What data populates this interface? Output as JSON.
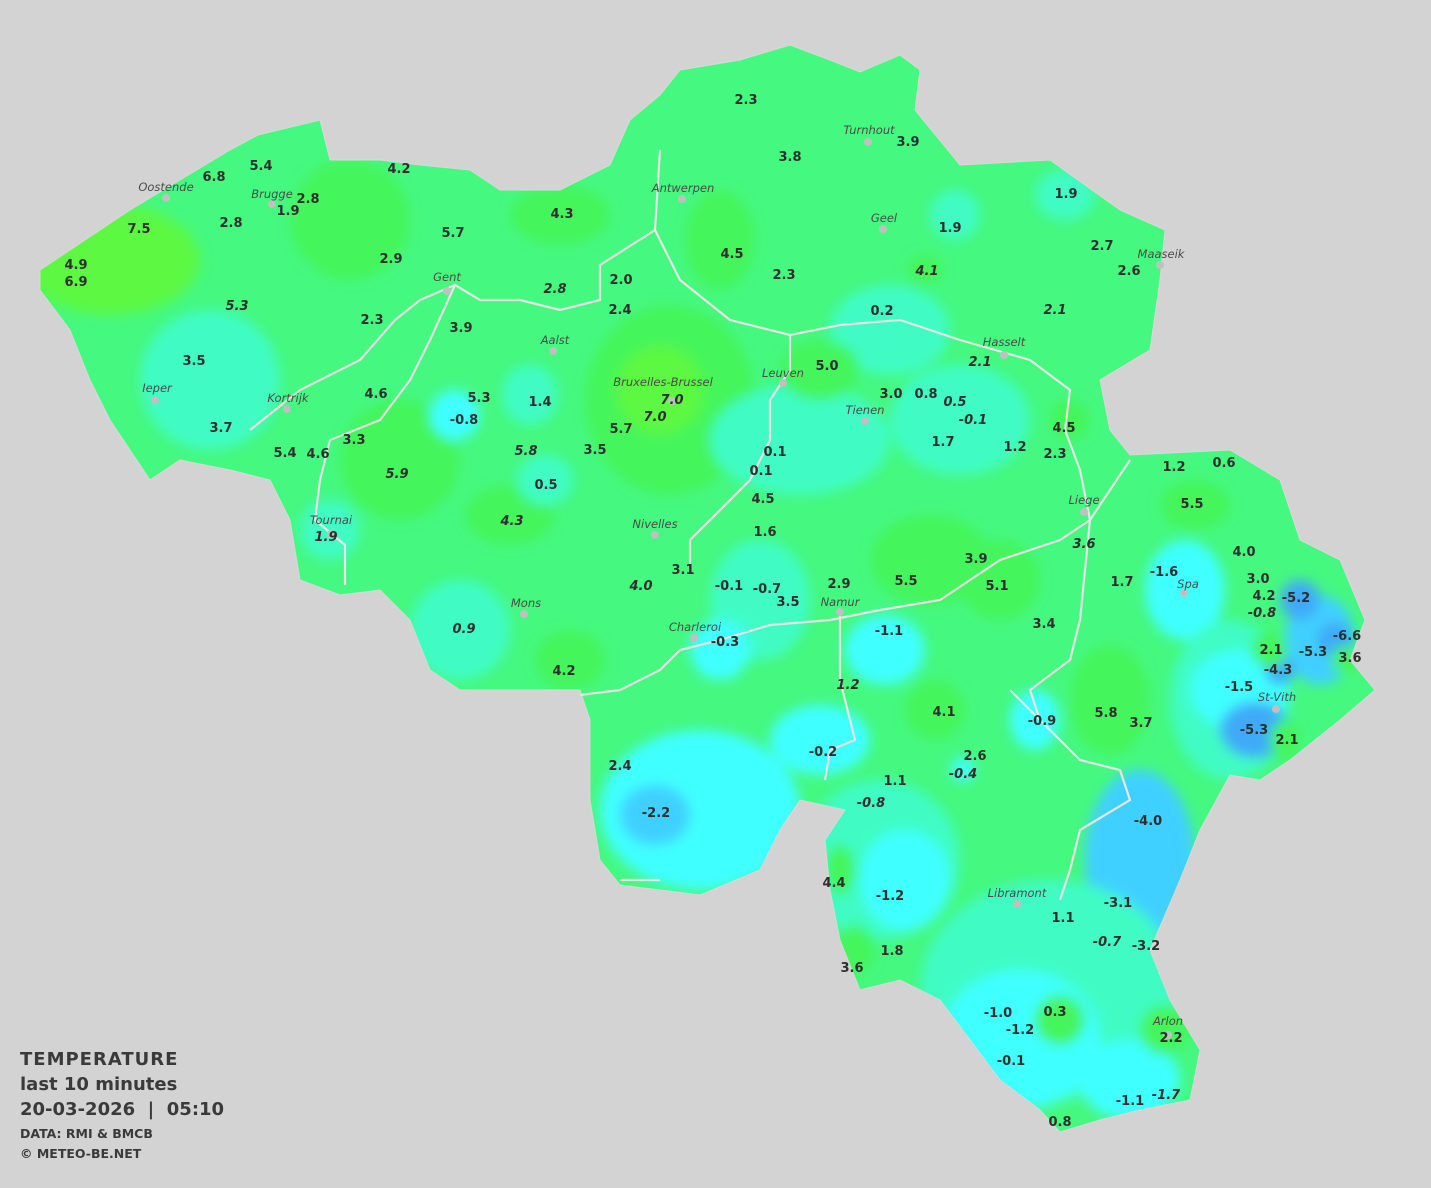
{
  "legend": {
    "title": "TEMPERATURE",
    "period": "last 10 minutes",
    "datetime": "20-03-2026  |  05:10",
    "source": "DATA: RMI & BMCB",
    "copyright": "© METEO-BE.NET"
  },
  "colors": {
    "background": "#d3d3d3",
    "base_green": "#45f880",
    "green": "#44f55c",
    "lime": "#5cf842",
    "aqua": "#40fcc4",
    "cyan": "#40ffff",
    "light_blue": "#40d0ff",
    "blue": "#40aaf8",
    "borders": "#e0e0e0"
  },
  "cities": [
    "Oostende",
    "Brugge",
    "Gent",
    "Antwerpen",
    "Turnhout",
    "Geel",
    "Maaseik",
    "Hasselt",
    "Aalst",
    "Ieper",
    "Kortrijk",
    "Bruxelles-Brussel",
    "Leuven",
    "Tienen",
    "Liege",
    "Tournai",
    "Nivelles",
    "Spa",
    "Mons",
    "Charleroi",
    "Namur",
    "St-Vith",
    "Libramont",
    "Arlon"
  ],
  "values": [
    {
      "t": "2.3"
    },
    {
      "t": "3.8"
    },
    {
      "t": "3.9"
    },
    {
      "t": "1.9"
    },
    {
      "t": "5.4"
    },
    {
      "t": "6.8"
    },
    {
      "t": "4.2"
    },
    {
      "t": "2.8"
    },
    {
      "t": "1.9"
    },
    {
      "t": "7.5"
    },
    {
      "t": "2.8"
    },
    {
      "t": "4.9"
    },
    {
      "t": "6.9"
    },
    {
      "t": "5.7"
    },
    {
      "t": "4.3"
    },
    {
      "t": "4.5"
    },
    {
      "t": "1.9"
    },
    {
      "t": "2.7"
    },
    {
      "t": "2.6"
    },
    {
      "t": "2.9"
    },
    {
      "t": "2.0"
    },
    {
      "t": "2.3"
    },
    {
      "t": "4.1",
      "i": true
    },
    {
      "t": "5.3",
      "i": true
    },
    {
      "t": "2.8",
      "i": true
    },
    {
      "t": "2.4"
    },
    {
      "t": "0.2"
    },
    {
      "t": "2.1",
      "i": true
    },
    {
      "t": "2.3"
    },
    {
      "t": "3.9"
    },
    {
      "t": "2.1",
      "i": true
    },
    {
      "t": "3.5"
    },
    {
      "t": "5.0"
    },
    {
      "t": "4.6"
    },
    {
      "t": "5.3"
    },
    {
      "t": "1.4"
    },
    {
      "t": "7.0",
      "i": true
    },
    {
      "t": "7.0",
      "i": true
    },
    {
      "t": "3.0"
    },
    {
      "t": "0.8"
    },
    {
      "t": "0.5",
      "i": true
    },
    {
      "t": "-0.1",
      "i": true
    },
    {
      "t": "-0.8"
    },
    {
      "t": "3.7"
    },
    {
      "t": "5.7"
    },
    {
      "t": "4.5"
    },
    {
      "t": "3.3"
    },
    {
      "t": "5.4"
    },
    {
      "t": "4.6"
    },
    {
      "t": "5.8",
      "i": true
    },
    {
      "t": "3.5"
    },
    {
      "t": "0.1"
    },
    {
      "t": "1.7"
    },
    {
      "t": "1.2"
    },
    {
      "t": "2.3"
    },
    {
      "t": "0.1"
    },
    {
      "t": "1.2"
    },
    {
      "t": "0.6"
    },
    {
      "t": "5.9",
      "i": true
    },
    {
      "t": "0.5"
    },
    {
      "t": "4.5"
    },
    {
      "t": "5.5"
    },
    {
      "t": "4.3",
      "i": true
    },
    {
      "t": "1.9",
      "i": true
    },
    {
      "t": "1.6"
    },
    {
      "t": "3.6",
      "i": true
    },
    {
      "t": "4.0"
    },
    {
      "t": "3.9"
    },
    {
      "t": "3.1"
    },
    {
      "t": "5.5"
    },
    {
      "t": "5.1"
    },
    {
      "t": "4.0",
      "i": true
    },
    {
      "t": "-0.1"
    },
    {
      "t": "-0.7"
    },
    {
      "t": "2.9"
    },
    {
      "t": "3.5"
    },
    {
      "t": "1.7"
    },
    {
      "t": "-1.6"
    },
    {
      "t": "3.0"
    },
    {
      "t": "4.2"
    },
    {
      "t": "-5.2"
    },
    {
      "t": "-0.8",
      "i": true
    },
    {
      "t": "0.9",
      "i": true
    },
    {
      "t": "-1.1"
    },
    {
      "t": "3.4"
    },
    {
      "t": "-0.3"
    },
    {
      "t": "2.1"
    },
    {
      "t": "-6.6"
    },
    {
      "t": "-5.3"
    },
    {
      "t": "3.6"
    },
    {
      "t": "4.2"
    },
    {
      "t": "-4.3"
    },
    {
      "t": "1.2",
      "i": true
    },
    {
      "t": "-1.5"
    },
    {
      "t": "4.1"
    },
    {
      "t": "5.8"
    },
    {
      "t": "-0.9"
    },
    {
      "t": "3.7"
    },
    {
      "t": "-5.3"
    },
    {
      "t": "-0.2"
    },
    {
      "t": "2.6"
    },
    {
      "t": "-0.4",
      "i": true
    },
    {
      "t": "2.1"
    },
    {
      "t": "2.4"
    },
    {
      "t": "1.1"
    },
    {
      "t": "-0.8",
      "i": true
    },
    {
      "t": "-2.2"
    },
    {
      "t": "-4.0"
    },
    {
      "t": "4.4"
    },
    {
      "t": "-1.2"
    },
    {
      "t": "-3.1"
    },
    {
      "t": "1.1"
    },
    {
      "t": "-0.7",
      "i": true
    },
    {
      "t": "-3.2"
    },
    {
      "t": "1.8"
    },
    {
      "t": "3.6"
    },
    {
      "t": "-1.0"
    },
    {
      "t": "0.3"
    },
    {
      "t": "-1.2"
    },
    {
      "t": "2.2"
    },
    {
      "t": "-0.1"
    },
    {
      "t": "-1.1"
    },
    {
      "t": "-1.7",
      "i": true
    },
    {
      "t": "0.8"
    }
  ]
}
